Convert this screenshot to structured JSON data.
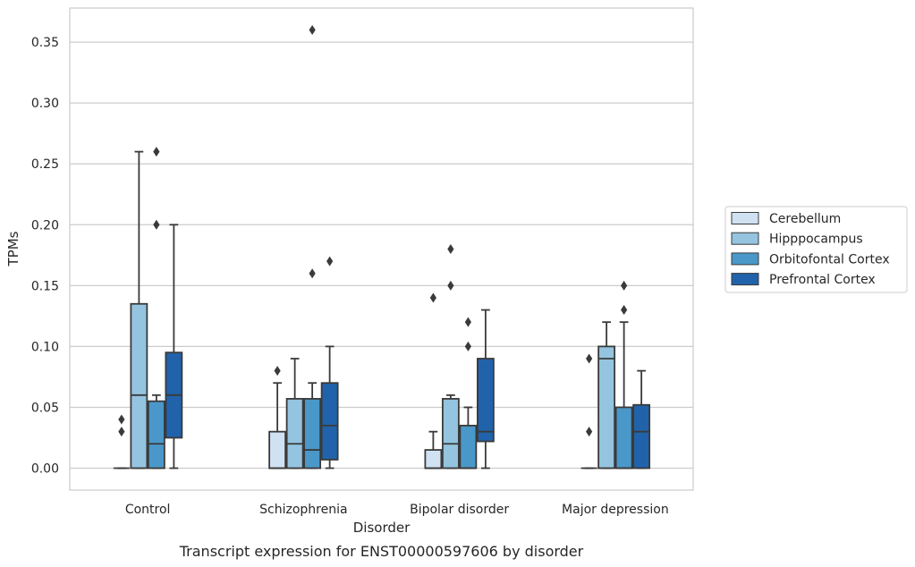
{
  "chart_data": {
    "type": "box",
    "caption": "Transcript expression for ENST00000597606 by disorder",
    "xlabel": "Disorder",
    "ylabel": "TPMs",
    "ylim": [
      -0.018,
      0.378
    ],
    "yticks": [
      "0.00",
      "0.05",
      "0.10",
      "0.15",
      "0.20",
      "0.25",
      "0.30",
      "0.35"
    ],
    "grid": "horizontal",
    "legend_position": "right",
    "categories": [
      "Control",
      "Schizophrenia",
      "Bipolar disorder",
      "Major depression"
    ],
    "series": [
      {
        "name": "Cerebellum",
        "color": "#d0e1f2",
        "boxes": [
          {
            "q1": 0.0,
            "median": 0.0,
            "q3": 0.0,
            "whisker_low": 0.0,
            "whisker_high": 0.0,
            "outliers": [
              0.03,
              0.04
            ]
          },
          {
            "q1": 0.0,
            "median": 0.0,
            "q3": 0.03,
            "whisker_low": 0.0,
            "whisker_high": 0.07,
            "outliers": [
              0.08
            ]
          },
          {
            "q1": 0.0,
            "median": 0.0,
            "q3": 0.015,
            "whisker_low": 0.0,
            "whisker_high": 0.03,
            "outliers": [
              0.14
            ]
          },
          {
            "q1": 0.0,
            "median": 0.0,
            "q3": 0.0,
            "whisker_low": 0.0,
            "whisker_high": 0.0,
            "outliers": [
              0.03,
              0.09
            ]
          }
        ]
      },
      {
        "name": "Hipppocampus",
        "color": "#94c4df",
        "boxes": [
          {
            "q1": 0.0,
            "median": 0.06,
            "q3": 0.135,
            "whisker_low": 0.0,
            "whisker_high": 0.26,
            "outliers": []
          },
          {
            "q1": 0.0,
            "median": 0.02,
            "q3": 0.057,
            "whisker_low": 0.0,
            "whisker_high": 0.09,
            "outliers": []
          },
          {
            "q1": 0.0,
            "median": 0.02,
            "q3": 0.057,
            "whisker_low": 0.0,
            "whisker_high": 0.06,
            "outliers": [
              0.15,
              0.18
            ]
          },
          {
            "q1": 0.0,
            "median": 0.09,
            "q3": 0.1,
            "whisker_low": 0.0,
            "whisker_high": 0.12,
            "outliers": []
          }
        ]
      },
      {
        "name": "Orbitofontal Cortex",
        "color": "#4a98c9",
        "boxes": [
          {
            "q1": 0.0,
            "median": 0.02,
            "q3": 0.055,
            "whisker_low": 0.0,
            "whisker_high": 0.06,
            "outliers": [
              0.2,
              0.26
            ]
          },
          {
            "q1": 0.0,
            "median": 0.015,
            "q3": 0.057,
            "whisker_low": 0.0,
            "whisker_high": 0.07,
            "outliers": [
              0.16,
              0.36
            ]
          },
          {
            "q1": 0.0,
            "median": 0.0,
            "q3": 0.035,
            "whisker_low": 0.0,
            "whisker_high": 0.05,
            "outliers": [
              0.1,
              0.12
            ]
          },
          {
            "q1": 0.0,
            "median": 0.0,
            "q3": 0.05,
            "whisker_low": 0.0,
            "whisker_high": 0.12,
            "outliers": [
              0.13,
              0.15
            ]
          }
        ]
      },
      {
        "name": "Prefrontal Cortex",
        "color": "#2163aa",
        "boxes": [
          {
            "q1": 0.025,
            "median": 0.06,
            "q3": 0.095,
            "whisker_low": 0.0,
            "whisker_high": 0.2,
            "outliers": []
          },
          {
            "q1": 0.007,
            "median": 0.035,
            "q3": 0.07,
            "whisker_low": 0.0,
            "whisker_high": 0.1,
            "outliers": [
              0.17
            ]
          },
          {
            "q1": 0.022,
            "median": 0.03,
            "q3": 0.09,
            "whisker_low": 0.0,
            "whisker_high": 0.13,
            "outliers": []
          },
          {
            "q1": 0.0,
            "median": 0.03,
            "q3": 0.052,
            "whisker_low": 0.0,
            "whisker_high": 0.08,
            "outliers": []
          }
        ]
      }
    ]
  }
}
